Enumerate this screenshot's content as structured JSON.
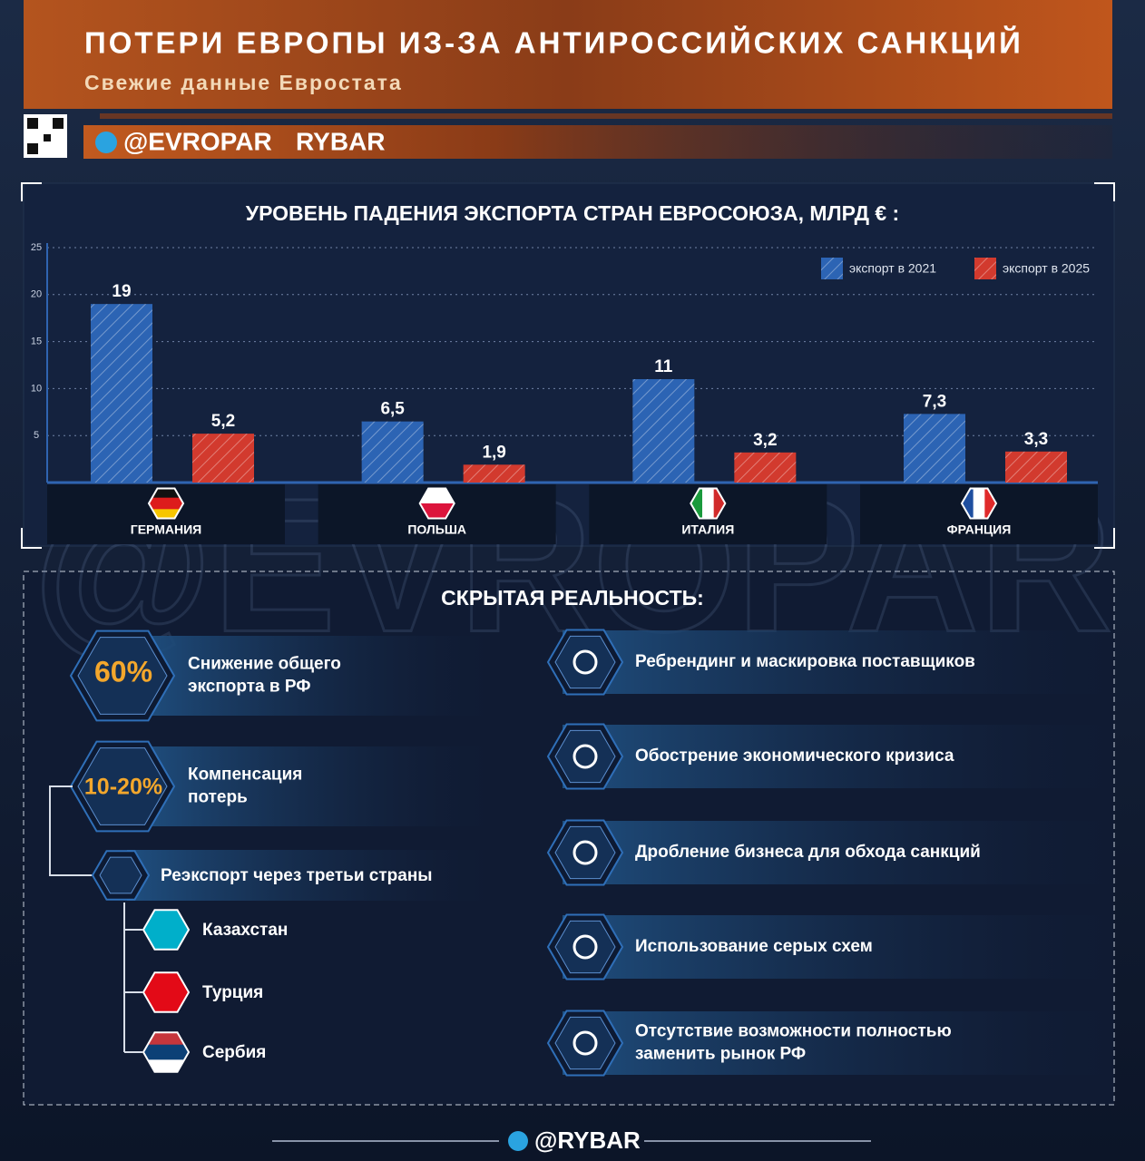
{
  "header": {
    "title": "ПОТЕРИ ЕВРОПЫ ИЗ-ЗА АНТИРОССИЙСКИХ САНКЦИЙ",
    "subtitle": "Свежие данные Евростата",
    "handle": "@EVROPAR",
    "brand": "RYBAR"
  },
  "watermark": "@EVROPAR",
  "chart_data": {
    "type": "bar",
    "title": "УРОВЕНЬ ПАДЕНИЯ ЭКСПОРТА СТРАН ЕВРОСОЮЗА, МЛРД € :",
    "categories": [
      "ГЕРМАНИЯ",
      "ПОЛЬША",
      "ИТАЛИЯ",
      "ФРАНЦИЯ"
    ],
    "series": [
      {
        "name": "экспорт в 2021",
        "color": "#2c64b4",
        "values": [
          19,
          6.5,
          11,
          7.3
        ],
        "value_labels": [
          "19",
          "6,5",
          "11",
          "7,3"
        ]
      },
      {
        "name": "экспорт в 2025",
        "color": "#d23a2e",
        "values": [
          5.2,
          1.9,
          3.2,
          3.3
        ],
        "value_labels": [
          "5,2",
          "1,9",
          "3,2",
          "3,3"
        ]
      }
    ],
    "ylim": [
      0,
      25
    ],
    "yticks": [
      5,
      10,
      15,
      20,
      25
    ],
    "grid": true,
    "legend": "top-right"
  },
  "hidden_reality": {
    "title": "СКРЫТАЯ РЕАЛЬНОСТЬ:",
    "stats": [
      {
        "value": "60%",
        "label": [
          "Снижение общего",
          "экспорта в РФ"
        ]
      },
      {
        "value": "10-20%",
        "label": [
          "Компенсация",
          "потерь"
        ]
      }
    ],
    "reexport": {
      "label": "Реэкспорт через третьи страны",
      "countries": [
        "Казахстан",
        "Турция",
        "Сербия"
      ]
    },
    "factors": [
      [
        "Ребрендинг и маскировка поставщиков"
      ],
      [
        "Обострение экономического кризиса"
      ],
      [
        "Дробление бизнеса для обхода санкций"
      ],
      [
        "Использование серых схем"
      ],
      [
        "Отсутствие возможности полностью",
        "заменить рынок РФ"
      ]
    ]
  },
  "footer": "@RYBAR"
}
